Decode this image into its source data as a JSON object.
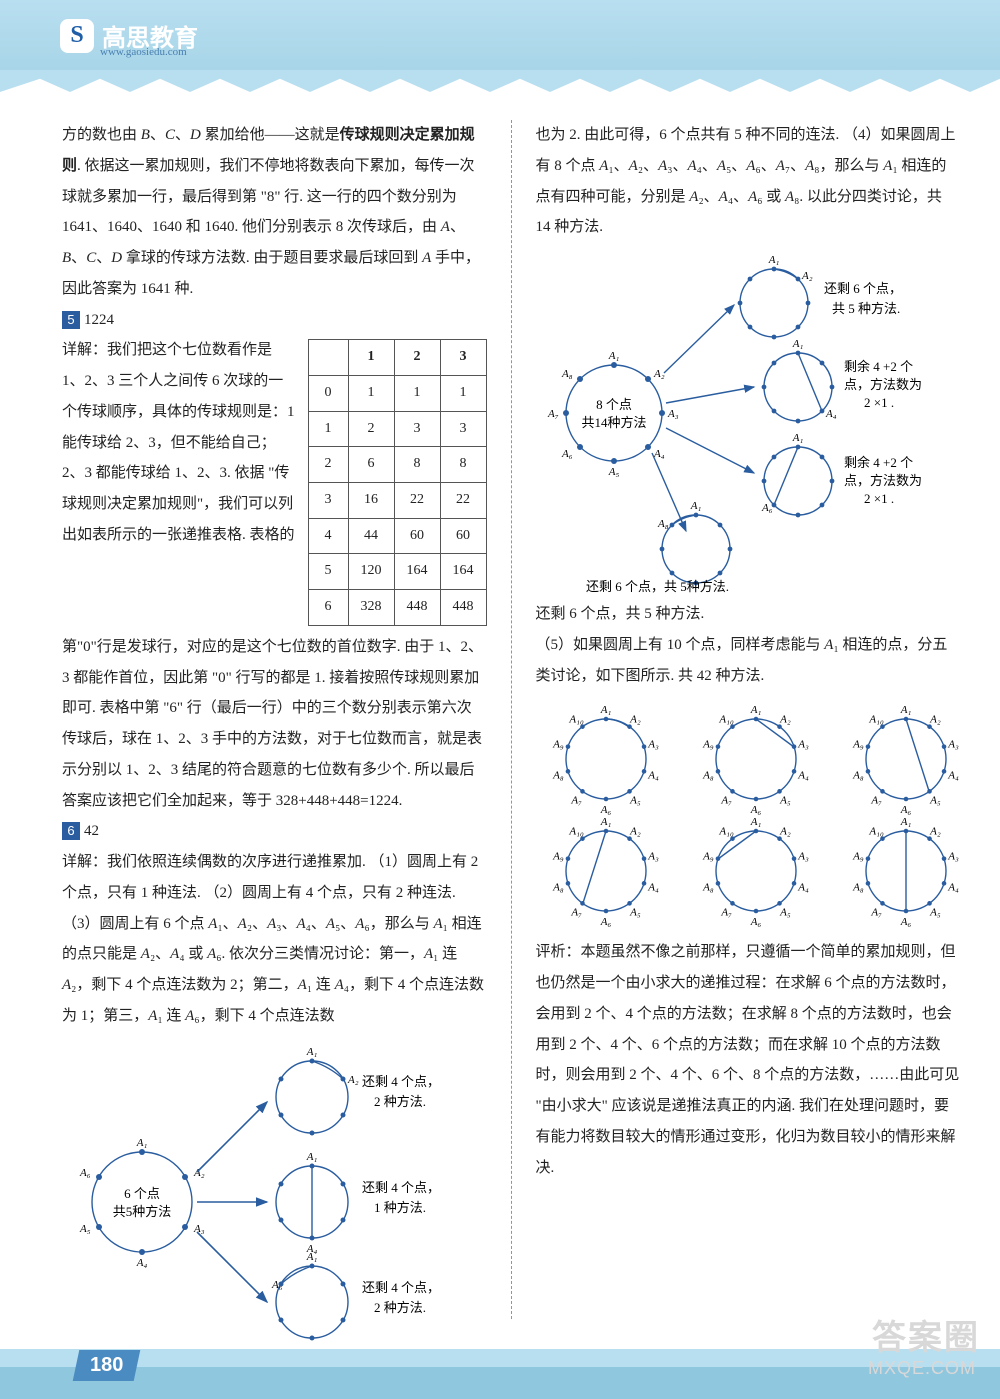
{
  "header": {
    "logo_letter": "S",
    "logo_text": "高思教育",
    "logo_url": "www.gaosiedu.com"
  },
  "page_number": "180",
  "watermark": {
    "main": "答案圈",
    "sub": "MXQE.COM"
  },
  "left_col": {
    "para1": "方的数也由 B、C、D 累加给他——这就是传球规则决定累加规则. 依据这一累加规则，我们不停地将数表向下累加，每传一次球就多累加一行，最后得到第 \"8\" 行. 这一行的四个数分别为 1641、1640、1640 和 1640. 他们分别表示 8 次传球后，由 A、B、C、D 拿球的传球方法数. 由于题目要求最后球回到 A 手中，因此答案为 1641 种.",
    "q5": {
      "num": "5",
      "answer": "1224"
    },
    "para2a": "详解：我们把这个七位数看作是 1、2、3 三个人之间传 6 次球的一个传球顺序，具体的传球规则是：1 能传球给 2、3，但不能给自己；2、3 都能传球给 1、2、3. 依据 \"传球规则决定累加规则\"，我们可以列出如表所示的一张递推表格. 表格的",
    "para2b": "第\"0\"行是发球行，对应的是这个七位数的首位数字. 由于 1、2、3 都能作首位，因此第 \"0\" 行写的都是 1. 接着按照传球规则累加即可. 表格中第 \"6\" 行（最后一行）中的三个数分别表示第六次传球后，球在 1、2、3 手中的方法数，对于七位数而言，就是表示分别以 1、2、3 结尾的符合题意的七位数有多少个. 所以最后答案应该把它们全加起来，等于 328+448+448=1224.",
    "table": {
      "headers": [
        "",
        "1",
        "2",
        "3"
      ],
      "rows": [
        [
          "0",
          "1",
          "1",
          "1"
        ],
        [
          "1",
          "2",
          "3",
          "3"
        ],
        [
          "2",
          "6",
          "8",
          "8"
        ],
        [
          "3",
          "16",
          "22",
          "22"
        ],
        [
          "4",
          "44",
          "60",
          "60"
        ],
        [
          "5",
          "120",
          "164",
          "164"
        ],
        [
          "6",
          "328",
          "448",
          "448"
        ]
      ],
      "border_color": "#555555",
      "font_size": 14
    },
    "q6": {
      "num": "6",
      "answer": "42"
    },
    "para3": "详解：我们依照连续偶数的次序进行递推累加. （1）圆周上有 2 个点，只有 1 种连法. （2）圆周上有 4 个点，只有 2 种连法. （3）圆周上有 6 个点 A₁、A₂、A₃、A₄、A₅、A₆，那么与 A₁ 相连的点只能是 A₂、A₄ 或 A₆. 依次分三类情况讨论：第一，A₁ 连 A₂，剩下 4 个点连法数为 2；第二，A₁ 连 A₄，剩下 4 个点连法数为 1；第三，A₁ 连 A₆，剩下 4 个点连法数",
    "diagram6": {
      "type": "network",
      "main_circle": {
        "label": "6 个点\n共5种方法",
        "points": 6,
        "color": "#2a5d9f"
      },
      "branches": [
        {
          "circle_points": 6,
          "chord": [
            1,
            2
          ],
          "note": "还剩 4 个点，\n2 种方法."
        },
        {
          "circle_points": 6,
          "chord": [
            1,
            4
          ],
          "note": "还剩 4 个点，\n1 种方法."
        },
        {
          "circle_points": 6,
          "chord": [
            1,
            6
          ],
          "note": "还剩 4 个点，\n2 种方法."
        }
      ],
      "arrow_color": "#2a5d9f",
      "node_color": "#2a5d9f"
    }
  },
  "right_col": {
    "para1": "也为 2. 由此可得，6 个点共有 5 种不同的连法. （4）如果圆周上有 8 个点 A₁、A₂、A₃、A₄、A₅、A₆、A₇、A₈，那么与 A₁ 相连的点有四种可能，分别是 A₂、A₄、A₆ 或 A₈. 以此分四类讨论，共 14 种方法.",
    "diagram8": {
      "type": "network",
      "main_circle": {
        "label": "8 个点\n共14种方法",
        "points": 8,
        "color": "#2a5d9f"
      },
      "branches": [
        {
          "circle_points": 8,
          "chord": [
            1,
            2
          ],
          "note": "还剩 6 个点，\n共 5 种方法."
        },
        {
          "circle_points": 8,
          "chord": [
            1,
            4
          ],
          "note": "剩余 4 +2 个\n点，方法数为\n2 ×1 ."
        },
        {
          "circle_points": 8,
          "chord": [
            1,
            6
          ],
          "note": "剩余 4 +2 个\n点，方法数为\n2 ×1 ."
        },
        {
          "circle_points": 8,
          "chord": [
            1,
            8
          ],
          "bottom_note": "还剩 6 个点，共  5种方法."
        }
      ]
    },
    "para2": "还剩 6 个点，共 5 种方法.",
    "para3": "（5）如果圆周上有 10 个点，同样考虑能与 A₁ 相连的点，分五类讨论，如下图所示. 共 42 种方法.",
    "diagram10": {
      "type": "grid",
      "circles": 6,
      "points": 10,
      "chords": [
        [
          1,
          2
        ],
        [
          1,
          4
        ],
        [
          1,
          6
        ],
        [
          1,
          8
        ],
        [
          1,
          10
        ]
      ],
      "color": "#2a5d9f"
    },
    "para4": "评析：本题虽然不像之前那样，只遵循一个简单的累加规则，但也仍然是一个由小求大的递推过程：在求解 6 个点的方法数时，会用到 2 个、4 个点的方法数；在求解 8 个点的方法数时，也会用到 2 个、4 个、6 个点的方法数；而在求解 10 个点的方法数时，则会用到 2 个、4 个、6 个、8 个点的方法数，……由此可见 \"由小求大\" 应该说是递推法真正的内涵. 我们在处理问题时，要有能力将数目较大的情形通过变形，化归为数目较小的情形来解决."
  },
  "styling": {
    "body_font_size": 15,
    "body_line_height": 2.05,
    "accent_color": "#2a5d9f",
    "top_band_color": "#b8dff0",
    "bottom_band_color": "#8fc7de",
    "divider_color": "#6a9fcf"
  }
}
